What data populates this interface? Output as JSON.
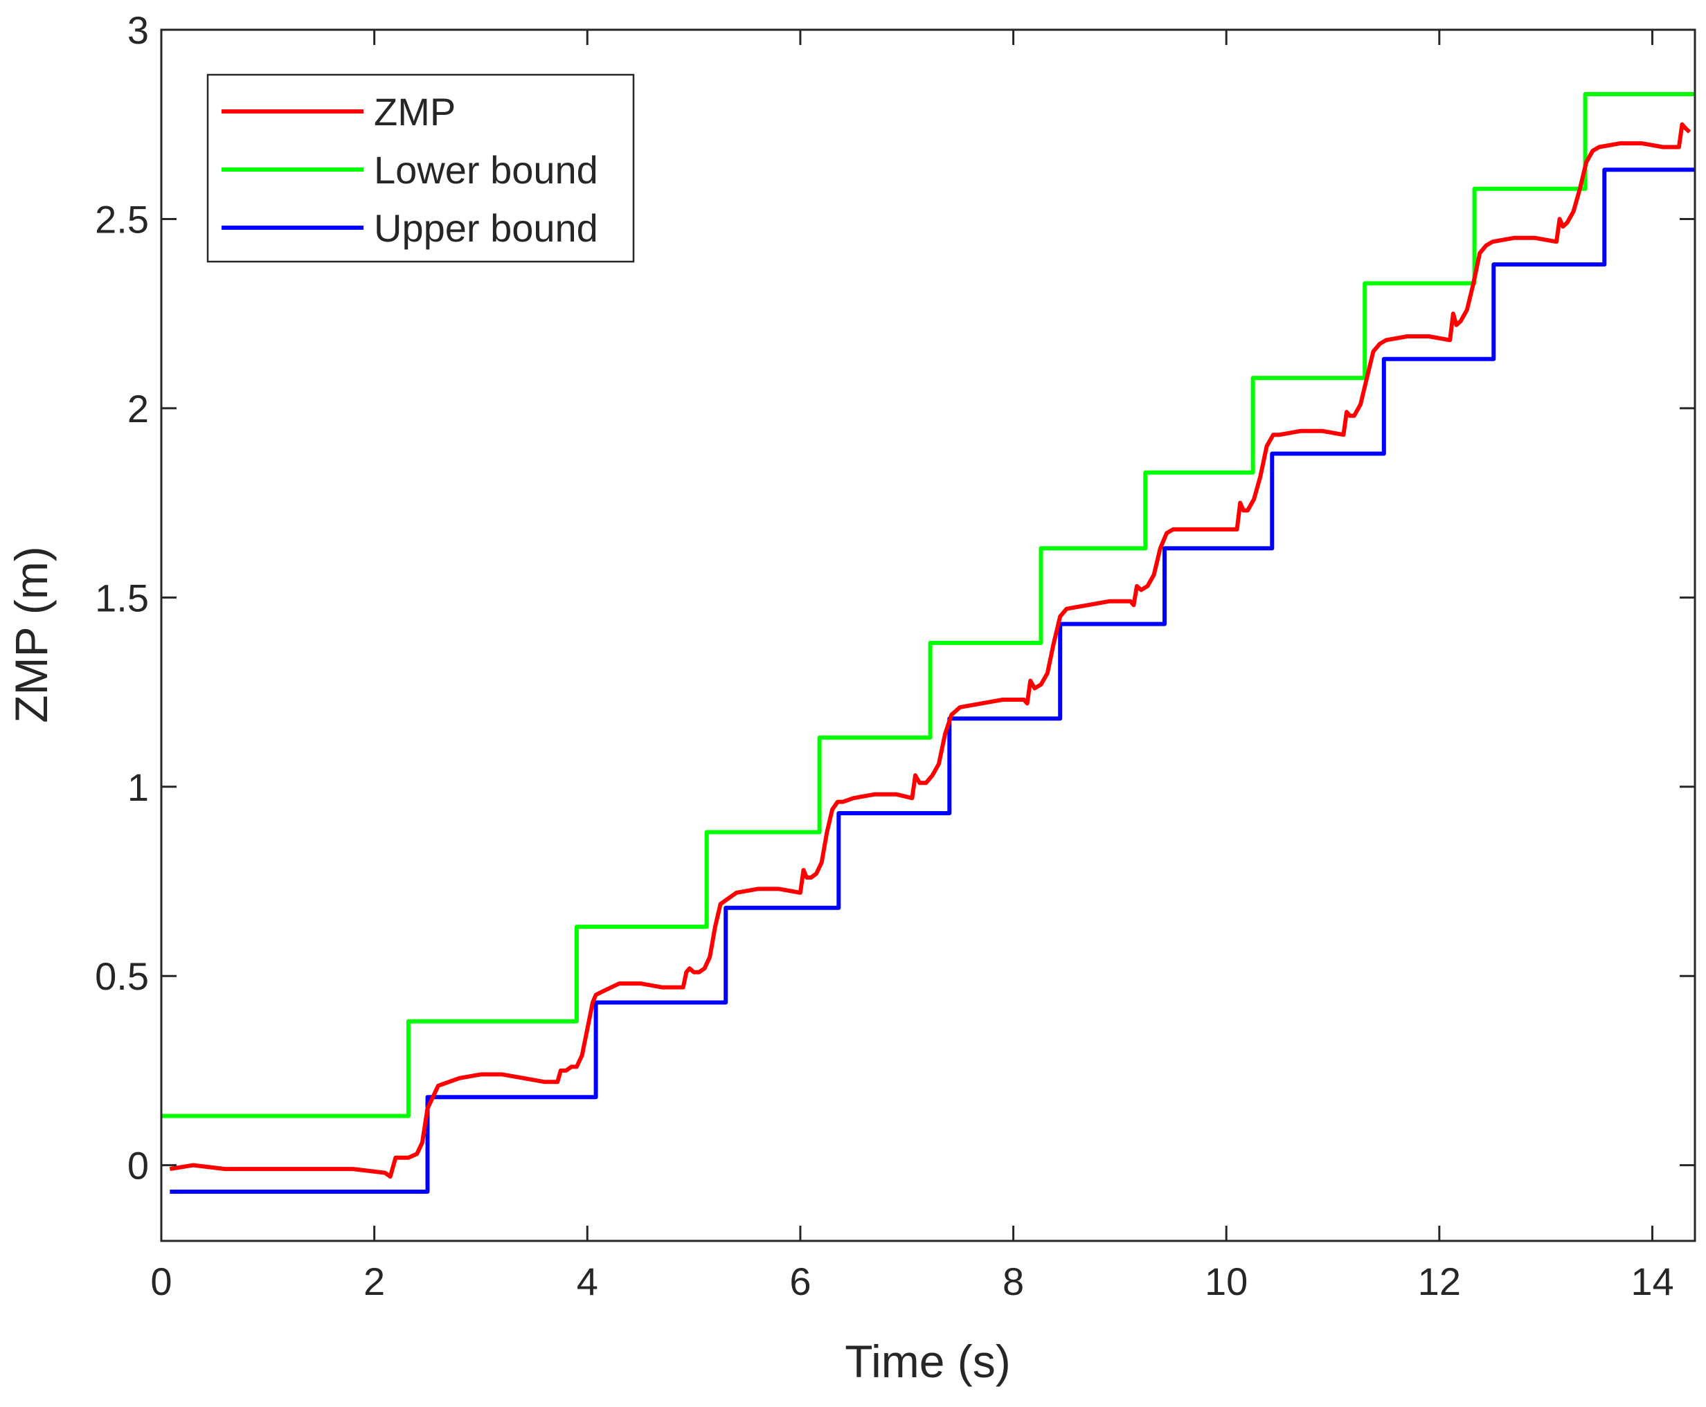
{
  "chart_data": {
    "type": "line",
    "title": "",
    "xlabel": "Time (s)",
    "ylabel": "ZMP (m)",
    "xlim": [
      0,
      14.4
    ],
    "ylim": [
      -0.2,
      3.0
    ],
    "xticks": [
      0,
      2,
      4,
      6,
      8,
      10,
      12,
      14
    ],
    "xtick_labels": [
      "0",
      "2",
      "4",
      "6",
      "8",
      "10",
      "12",
      "14"
    ],
    "yticks": [
      0,
      0.5,
      1,
      1.5,
      2,
      2.5,
      3
    ],
    "ytick_labels": [
      "0",
      "0.5",
      "1",
      "1.5",
      "2",
      "2.5",
      "3"
    ],
    "grid": false,
    "legend_position": "top-left",
    "series": [
      {
        "name": "ZMP",
        "color": "#ff0000",
        "x": [
          0.08,
          0.3,
          0.6,
          0.9,
          1.2,
          1.5,
          1.8,
          2.1,
          2.15,
          2.2,
          2.25,
          2.32,
          2.4,
          2.45,
          2.5,
          2.6,
          2.8,
          3.0,
          3.2,
          3.4,
          3.6,
          3.72,
          3.75,
          3.8,
          3.85,
          3.9,
          3.95,
          4.0,
          4.05,
          4.08,
          4.15,
          4.3,
          4.5,
          4.7,
          4.9,
          4.93,
          4.96,
          5.0,
          5.05,
          5.1,
          5.15,
          5.2,
          5.25,
          5.3,
          5.4,
          5.6,
          5.8,
          6.0,
          6.03,
          6.06,
          6.1,
          6.15,
          6.2,
          6.25,
          6.3,
          6.35,
          6.4,
          6.5,
          6.7,
          6.9,
          7.05,
          7.08,
          7.12,
          7.18,
          7.24,
          7.3,
          7.36,
          7.42,
          7.5,
          7.7,
          7.9,
          8.1,
          8.13,
          8.16,
          8.2,
          8.26,
          8.32,
          8.38,
          8.44,
          8.5,
          8.7,
          8.9,
          9.1,
          9.13,
          9.16,
          9.2,
          9.26,
          9.32,
          9.38,
          9.44,
          9.5,
          9.7,
          9.9,
          10.1,
          10.13,
          10.16,
          10.2,
          10.26,
          10.32,
          10.38,
          10.44,
          10.5,
          10.7,
          10.9,
          11.1,
          11.13,
          11.16,
          11.2,
          11.26,
          11.32,
          11.38,
          11.44,
          11.5,
          11.7,
          11.9,
          12.1,
          12.13,
          12.16,
          12.2,
          12.26,
          12.32,
          12.38,
          12.44,
          12.5,
          12.7,
          12.9,
          13.1,
          13.13,
          13.16,
          13.2,
          13.26,
          13.32,
          13.38,
          13.44,
          13.5,
          13.7,
          13.9,
          14.1,
          14.25,
          14.28,
          14.31,
          14.35
        ],
        "y": [
          -0.01,
          0.0,
          -0.01,
          -0.01,
          -0.01,
          -0.01,
          -0.01,
          -0.02,
          -0.03,
          0.02,
          0.02,
          0.02,
          0.03,
          0.06,
          0.15,
          0.21,
          0.23,
          0.24,
          0.24,
          0.23,
          0.22,
          0.22,
          0.25,
          0.25,
          0.26,
          0.26,
          0.29,
          0.36,
          0.43,
          0.45,
          0.46,
          0.48,
          0.48,
          0.47,
          0.47,
          0.51,
          0.52,
          0.51,
          0.51,
          0.52,
          0.55,
          0.63,
          0.69,
          0.7,
          0.72,
          0.73,
          0.73,
          0.72,
          0.78,
          0.76,
          0.76,
          0.77,
          0.8,
          0.88,
          0.94,
          0.96,
          0.96,
          0.97,
          0.98,
          0.98,
          0.97,
          1.03,
          1.01,
          1.01,
          1.03,
          1.06,
          1.14,
          1.19,
          1.21,
          1.22,
          1.23,
          1.23,
          1.22,
          1.28,
          1.26,
          1.27,
          1.3,
          1.38,
          1.45,
          1.47,
          1.48,
          1.49,
          1.49,
          1.48,
          1.53,
          1.52,
          1.53,
          1.56,
          1.63,
          1.67,
          1.68,
          1.68,
          1.68,
          1.68,
          1.75,
          1.73,
          1.73,
          1.76,
          1.82,
          1.9,
          1.93,
          1.93,
          1.94,
          1.94,
          1.93,
          1.99,
          1.98,
          1.98,
          2.01,
          2.08,
          2.15,
          2.17,
          2.18,
          2.19,
          2.19,
          2.18,
          2.25,
          2.22,
          2.23,
          2.26,
          2.33,
          2.41,
          2.43,
          2.44,
          2.45,
          2.45,
          2.44,
          2.5,
          2.48,
          2.49,
          2.52,
          2.58,
          2.65,
          2.68,
          2.69,
          2.7,
          2.7,
          2.69,
          2.69,
          2.75,
          2.74,
          2.73
        ]
      },
      {
        "name": "Lower bound",
        "color": "#00ff00",
        "x": [
          0,
          2.32,
          2.32,
          3.9,
          3.9,
          5.12,
          5.12,
          6.18,
          6.18,
          7.22,
          7.22,
          8.26,
          8.26,
          9.24,
          9.24,
          10.25,
          10.25,
          11.3,
          11.3,
          12.33,
          12.33,
          13.37,
          13.37,
          14.4
        ],
        "y": [
          0.13,
          0.13,
          0.38,
          0.38,
          0.63,
          0.63,
          0.88,
          0.88,
          1.13,
          1.13,
          1.38,
          1.38,
          1.63,
          1.63,
          1.83,
          1.83,
          2.08,
          2.08,
          2.33,
          2.33,
          2.58,
          2.58,
          2.83,
          2.83
        ]
      },
      {
        "name": "Upper bound",
        "color": "#0000ff",
        "x": [
          0.08,
          2.5,
          2.5,
          4.08,
          4.08,
          5.3,
          5.3,
          6.36,
          6.36,
          7.4,
          7.4,
          8.44,
          8.44,
          9.42,
          9.42,
          10.43,
          10.43,
          11.48,
          11.48,
          12.51,
          12.51,
          13.55,
          13.55,
          14.4
        ],
        "y": [
          -0.07,
          -0.07,
          0.18,
          0.18,
          0.43,
          0.43,
          0.68,
          0.68,
          0.93,
          0.93,
          1.18,
          1.18,
          1.43,
          1.43,
          1.63,
          1.63,
          1.88,
          1.88,
          2.13,
          2.13,
          2.38,
          2.38,
          2.63,
          2.63
        ]
      }
    ]
  }
}
